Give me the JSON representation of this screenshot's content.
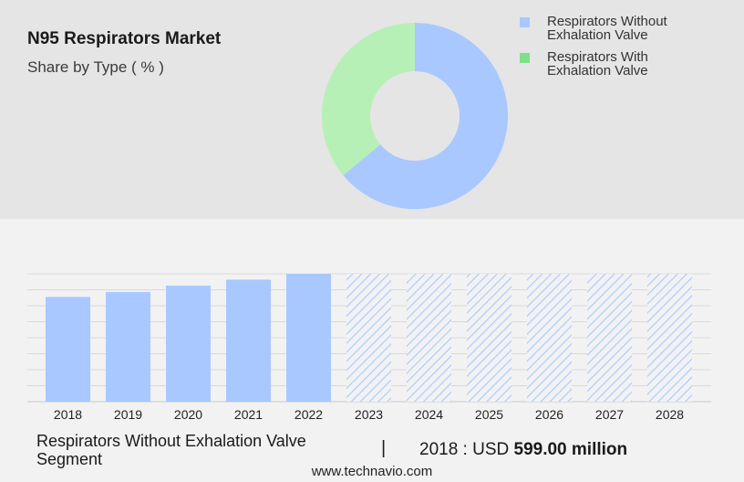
{
  "header": {
    "title": "N95 Respirators Market",
    "subtitle": "Share by Type ( % )"
  },
  "legend": {
    "items": [
      {
        "label_line1": "Respirators Without",
        "label_line2": "Exhalation Valve",
        "color": "#a9c8ff"
      },
      {
        "label_line1": "Respirators With",
        "label_line2": "Exhalation Valve",
        "color": "#7ee08a"
      }
    ]
  },
  "chart_data": [
    {
      "type": "pie",
      "variant": "donut",
      "slices": [
        {
          "name": "Respirators Without Exhalation Valve",
          "value": 64,
          "color": "#a9c8ff"
        },
        {
          "name": "Respirators With Exhalation Valve",
          "value": 36,
          "color": "#b6f0b6"
        }
      ]
    },
    {
      "type": "bar",
      "categories": [
        "2018",
        "2019",
        "2020",
        "2021",
        "2022",
        "2023",
        "2024",
        "2025",
        "2026",
        "2027",
        "2028"
      ],
      "values": [
        599,
        627,
        664,
        698,
        731,
        731,
        731,
        731,
        731,
        731,
        731
      ],
      "forecast_from": "2023",
      "ylim": [
        0,
        731
      ],
      "grid": true,
      "bar_color": "#a9c8ff",
      "forecast_pattern": "hatched"
    }
  ],
  "footer": {
    "segment": "Respirators Without Exhalation Valve Segment",
    "divider": "|",
    "value_prefix": "2018 : USD",
    "value_amount": "599.00 million",
    "site": "www.technavio.com"
  }
}
